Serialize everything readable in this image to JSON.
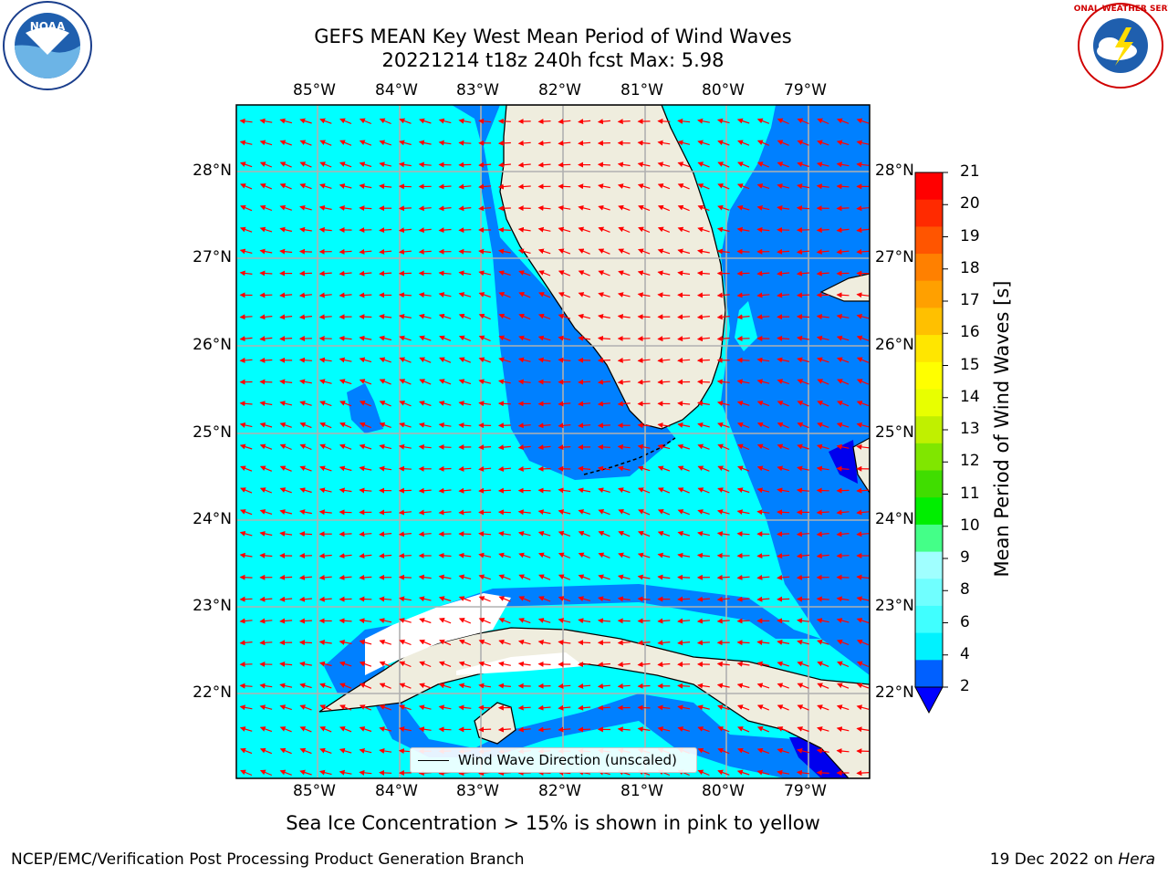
{
  "title_line1": "GEFS MEAN Key West Mean Period of Wind Waves",
  "title_line2": "20221214 t18z 240h fcst   Max: 5.98",
  "lon_ticks": [
    "85°W",
    "84°W",
    "83°W",
    "82°W",
    "81°W",
    "80°W",
    "79°W"
  ],
  "lat_ticks": [
    "28°N",
    "27°N",
    "26°N",
    "25°N",
    "24°N",
    "23°N",
    "22°N"
  ],
  "legend_label": "Wind Wave Direction (unscaled)",
  "colorbar": {
    "label": "Mean Period of Wind Waves [s]",
    "ticks": [
      "21",
      "20",
      "19",
      "18",
      "17",
      "16",
      "15",
      "14",
      "13",
      "12",
      "11",
      "10",
      "9",
      "8",
      "6",
      "4",
      "2"
    ],
    "colors": [
      "#0000ff",
      "#0060ff",
      "#00f2ff",
      "#40ffff",
      "#70ffff",
      "#a0ffff",
      "#44ff88",
      "#00ee00",
      "#40dd00",
      "#80e600",
      "#c0f000",
      "#e8ff00",
      "#ffff00",
      "#ffe600",
      "#ffc000",
      "#ffa000",
      "#ff8000",
      "#ff5500",
      "#ff2a00",
      "#ff0000"
    ]
  },
  "caption": "Sea Ice Concentration > 15% is shown in pink to yellow",
  "footer_left": "NCEP/EMC/Verification Post Processing Product Generation Branch",
  "footer_right_date": "19 Dec 2022 on ",
  "footer_right_host": "Hera",
  "logos": {
    "left": "NOAA",
    "right": "NATIONAL WEATHER SERVICE"
  },
  "map_colors": {
    "ocean_4_6": "#00ffff",
    "ocean_2_4": "#0080ff",
    "ocean_lt2": "#0000ee",
    "land": "#efedde",
    "arrow": "#ff0000",
    "grid": "#b0b0b0"
  }
}
